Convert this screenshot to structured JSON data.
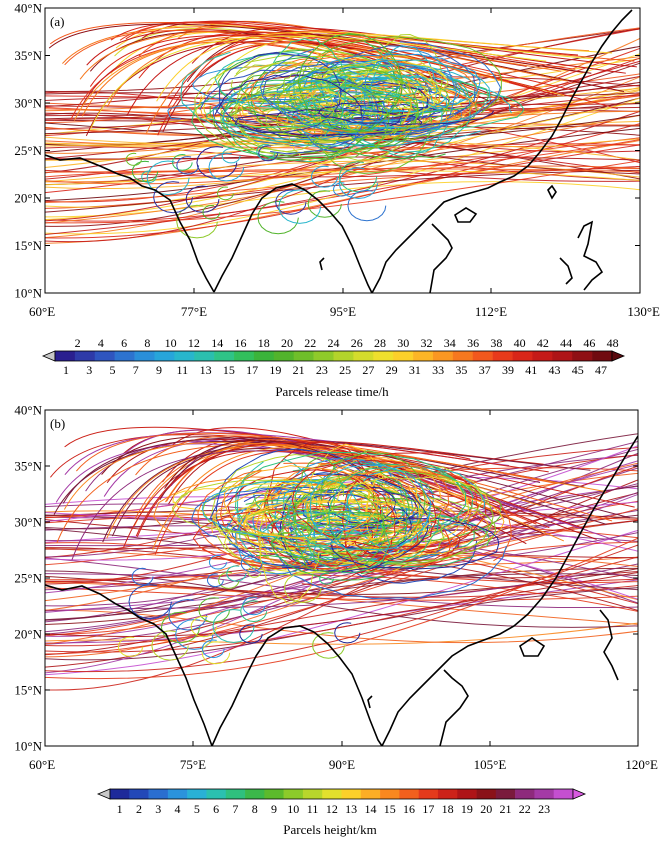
{
  "panels": [
    {
      "id": "a",
      "label": "(a)",
      "lon_labels": [
        "60°E",
        "77°E",
        "95°E",
        "112°E",
        "130°E"
      ],
      "lat_labels": [
        "40°N",
        "35°N",
        "30°N",
        "25°N",
        "20°N",
        "15°N",
        "10°N"
      ],
      "lon_range": [
        60,
        130
      ],
      "lat_range": [
        10,
        40
      ],
      "colorbar": {
        "title": "Parcels release time/h",
        "top_labels": [
          "2",
          "4",
          "6",
          "8",
          "10",
          "12",
          "14",
          "16",
          "18",
          "20",
          "22",
          "24",
          "26",
          "28",
          "30",
          "32",
          "34",
          "36",
          "38",
          "40",
          "42",
          "44",
          "46",
          "48"
        ],
        "bottom_labels": [
          "1",
          "3",
          "5",
          "7",
          "9",
          "11",
          "13",
          "15",
          "17",
          "19",
          "21",
          "23",
          "25",
          "27",
          "29",
          "31",
          "33",
          "35",
          "37",
          "39",
          "41",
          "43",
          "45",
          "47"
        ],
        "colors": [
          "#2a1f8f",
          "#2e3aa8",
          "#2f55bf",
          "#2d73cf",
          "#2a8fd9",
          "#27a5da",
          "#28b6cc",
          "#2bbfae",
          "#2fc487",
          "#32bf5c",
          "#3bb43b",
          "#52b42c",
          "#6fbe2a",
          "#8fca2a",
          "#b3d42b",
          "#d4dc2c",
          "#efe02d",
          "#fcd02a",
          "#fcb526",
          "#fa9722",
          "#f6781f",
          "#f2581d",
          "#e83a1b",
          "#d92619",
          "#c51a18",
          "#ae1417",
          "#8f0f14",
          "#700a10"
        ],
        "left_arrow": "#c8c8c8",
        "right_arrow": "#5a0a0e"
      }
    },
    {
      "id": "b",
      "label": "(b)",
      "lon_labels": [
        "60°E",
        "75°E",
        "90°E",
        "105°E",
        "120°E"
      ],
      "lat_labels": [
        "40°N",
        "35°N",
        "30°N",
        "25°N",
        "20°N",
        "15°N",
        "10°N"
      ],
      "lon_range": [
        60,
        120
      ],
      "lat_range": [
        10,
        40
      ],
      "colorbar": {
        "title": "Parcels height/km",
        "labels": [
          "1",
          "2",
          "3",
          "4",
          "5",
          "6",
          "7",
          "8",
          "9",
          "10",
          "11",
          "12",
          "13",
          "14",
          "15",
          "16",
          "17",
          "18",
          "19",
          "20",
          "21",
          "22",
          "23"
        ],
        "colors": [
          "#1e2a9a",
          "#2348b8",
          "#2a6ed0",
          "#2b93dc",
          "#29b1d6",
          "#2bc0b0",
          "#2fc07e",
          "#3bb84a",
          "#5cba2c",
          "#8ccb2a",
          "#b8d62c",
          "#e2e02d",
          "#fcd02a",
          "#fcae25",
          "#f9881f",
          "#f2601d",
          "#e43a1b",
          "#cc2219",
          "#ae1417",
          "#8a1218",
          "#7a1a3c",
          "#8e2a7c",
          "#a43aa6",
          "#c44fd0"
        ],
        "left_arrow": "#c8c8c8",
        "right_arrow": "#d85ae0"
      }
    }
  ]
}
